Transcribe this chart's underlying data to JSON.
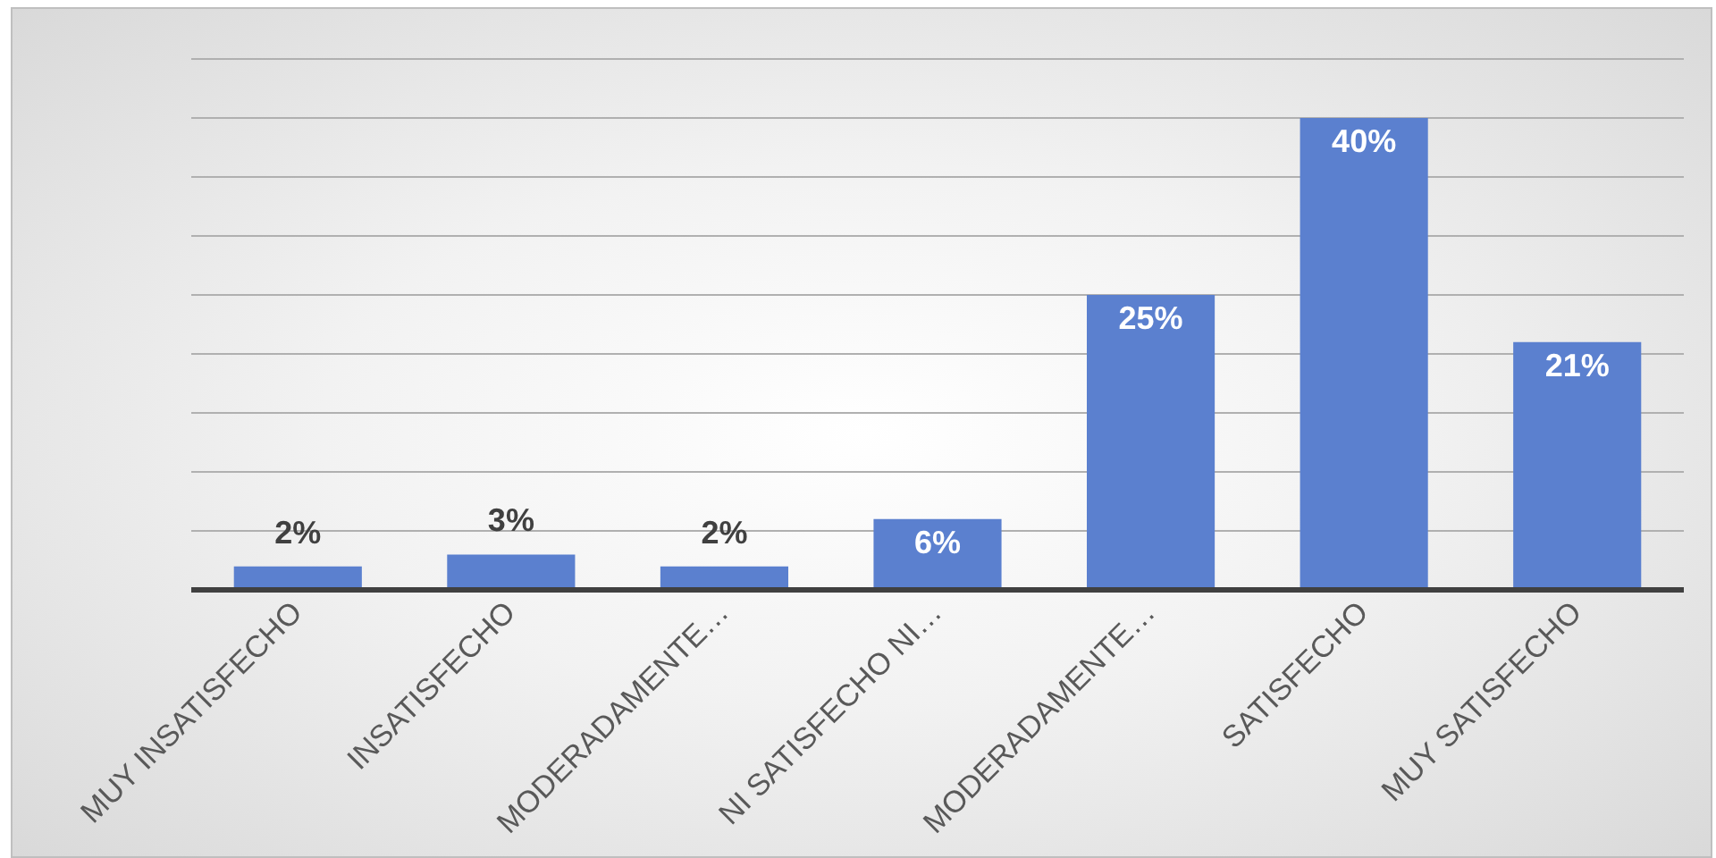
{
  "chart_data": {
    "type": "bar",
    "categories": [
      "MUY INSATISFECHO",
      "INSATISFECHO",
      "MODERADAMENTE…",
      "NI SATISFECHO NI…",
      "MODERADAMENTE…",
      "SATISFECHO",
      "MUY SATISFECHO"
    ],
    "values": [
      2,
      3,
      2,
      6,
      25,
      40,
      21
    ],
    "value_labels": [
      "2%",
      "3%",
      "2%",
      "6%",
      "25%",
      "40%",
      "21%"
    ],
    "color": "#5b80cf",
    "ylim": [
      0,
      45
    ],
    "yticks": [
      {
        "value": 0,
        "label": null
      },
      {
        "value": 5,
        "label": null
      },
      {
        "value": 10,
        "label": null
      },
      {
        "value": 15,
        "label": null
      },
      {
        "value": 20,
        "label": null
      },
      {
        "value": 25,
        "label": null
      },
      {
        "value": 30,
        "label": null
      },
      {
        "value": 35,
        "label": null
      },
      {
        "value": 40,
        "label": null
      },
      {
        "value": 45,
        "label": null
      }
    ],
    "grid": "y",
    "tick_labels": "x",
    "legend": false
  }
}
